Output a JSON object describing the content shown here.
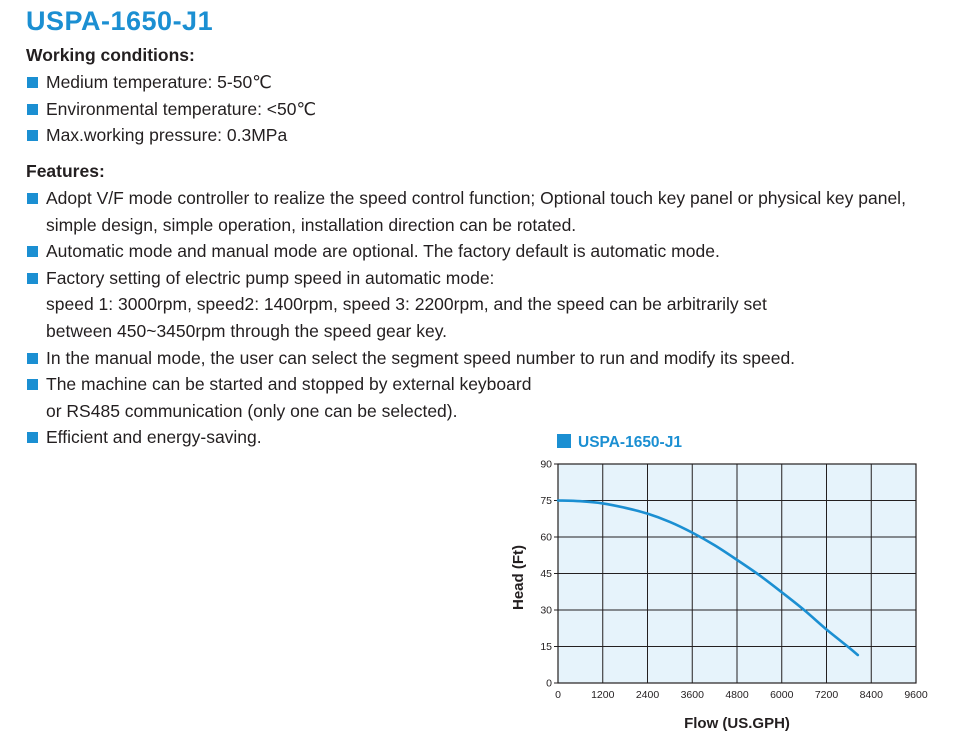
{
  "title": "USPA-1650-J1",
  "working_conditions": {
    "heading": "Working conditions:",
    "items": [
      "Medium temperature: 5-50℃",
      "Environmental temperature: <50℃",
      "Max.working pressure: 0.3MPa"
    ]
  },
  "features": {
    "heading": "Features:",
    "items": [
      [
        "Adopt V/F mode controller to realize the speed control function; Optional touch key panel or physical key panel,",
        "simple design, simple operation, installation direction can be rotated."
      ],
      [
        "Automatic mode and manual mode are optional. The factory default is automatic mode."
      ],
      [
        "Factory setting of electric pump speed in automatic mode:",
        "speed 1: 3000rpm, speed2: 1400rpm, speed 3: 2200rpm, and the speed can be arbitrarily set",
        "between 450~3450rpm through the speed gear key."
      ],
      [
        "In the manual mode, the user can select the segment speed number to run and modify its speed."
      ],
      [
        "The machine can be started and stopped by external keyboard",
        "or RS485 communication (only one can be selected)."
      ],
      [
        "Efficient and energy-saving."
      ]
    ]
  },
  "colors": {
    "accent": "#1b8fd2",
    "plot_background": "#e6f3fb",
    "grid": "#231f20"
  },
  "chart_data": {
    "type": "line",
    "title": "USPA-1650-J1",
    "xlabel": "Flow (US.GPH)",
    "ylabel": "Head (Ft)",
    "xlim": [
      0,
      9600
    ],
    "ylim": [
      0,
      90
    ],
    "xticks": [
      0,
      1200,
      2400,
      3600,
      4800,
      6000,
      7200,
      8400,
      9600
    ],
    "yticks": [
      0,
      15,
      30,
      45,
      60,
      75,
      90
    ],
    "grid": true,
    "legend": "top-left",
    "series": [
      {
        "name": "USPA-1650-J1",
        "color": "#1b8fd2",
        "x": [
          0,
          600,
          1200,
          1800,
          2400,
          3000,
          3600,
          4200,
          4800,
          5400,
          6000,
          6600,
          7200,
          7800,
          8040
        ],
        "y": [
          75,
          74.7,
          73.8,
          72,
          69.6,
          66.2,
          61.8,
          56.6,
          50.6,
          44.3,
          37.3,
          30,
          22,
          14.6,
          11.5
        ]
      }
    ]
  }
}
